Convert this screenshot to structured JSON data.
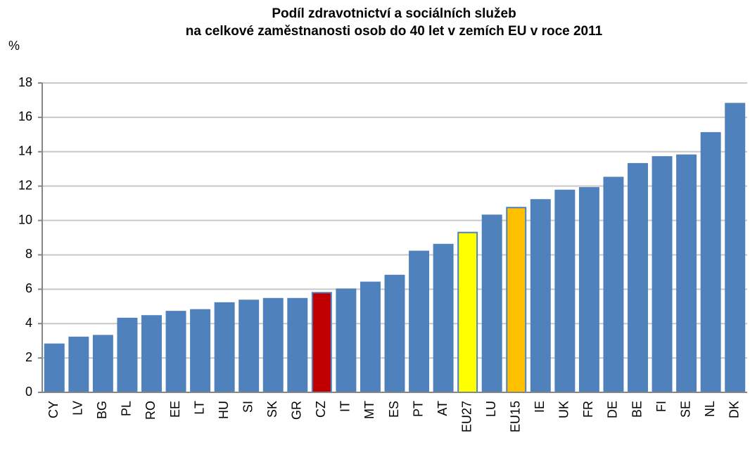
{
  "chart_data": {
    "type": "bar",
    "title": [
      "Podíl zdravotnictví a sociálních služeb",
      "na celkové zaměstnanosti osob do 40 let v zemích EU v roce 2011"
    ],
    "ylabel": "%",
    "categories": [
      "CY",
      "LV",
      "BG",
      "PL",
      "RO",
      "EE",
      "LT",
      "HU",
      "SI",
      "SK",
      "GR",
      "CZ",
      "IT",
      "MT",
      "ES",
      "PT",
      "AT",
      "EU27",
      "LU",
      "EU15",
      "IE",
      "UK",
      "FR",
      "DE",
      "BE",
      "FI",
      "SE",
      "NL",
      "DK"
    ],
    "values": [
      2.8,
      3.2,
      3.3,
      4.3,
      4.45,
      4.7,
      4.8,
      5.2,
      5.35,
      5.45,
      5.45,
      5.8,
      6.0,
      6.4,
      6.8,
      8.2,
      8.6,
      9.3,
      10.3,
      10.75,
      11.2,
      11.75,
      11.9,
      12.5,
      13.3,
      13.7,
      13.8,
      15.1,
      16.8
    ],
    "colors": [
      "#4f81bd",
      "#4f81bd",
      "#4f81bd",
      "#4f81bd",
      "#4f81bd",
      "#4f81bd",
      "#4f81bd",
      "#4f81bd",
      "#4f81bd",
      "#4f81bd",
      "#4f81bd",
      "#c00000",
      "#4f81bd",
      "#4f81bd",
      "#4f81bd",
      "#4f81bd",
      "#4f81bd",
      "#ffff00",
      "#4f81bd",
      "#ffc000",
      "#4f81bd",
      "#4f81bd",
      "#4f81bd",
      "#4f81bd",
      "#4f81bd",
      "#4f81bd",
      "#4f81bd",
      "#4f81bd",
      "#4f81bd"
    ],
    "edgecolor": "#4f81bd",
    "ylim": [
      0,
      18
    ],
    "yticks": [
      0,
      2,
      4,
      6,
      8,
      10,
      12,
      14,
      16,
      18
    ],
    "grid": true
  }
}
